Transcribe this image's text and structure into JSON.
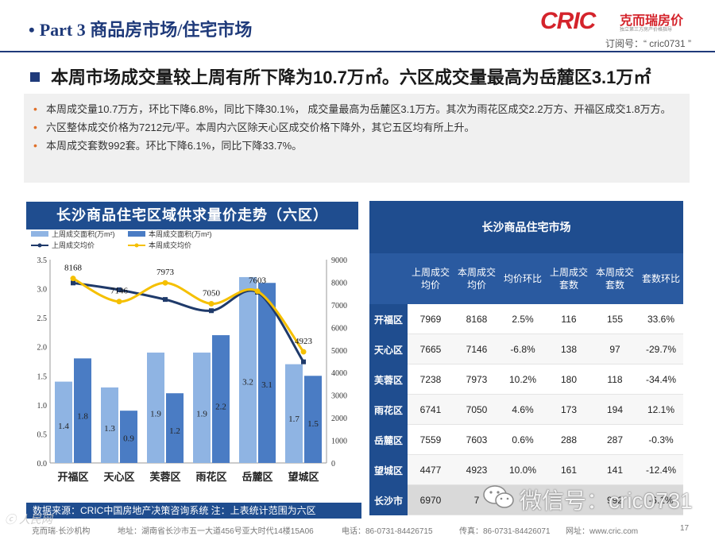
{
  "header": {
    "bullet": "•",
    "title": "Part 3 商品房市场/住宅市场",
    "logo_brand": "CRIC",
    "logo_cn": "克而瑞房价",
    "logo_sub": "独立第三方房产价格指导",
    "subscribe": "订阅号：“ cric0731 ”"
  },
  "headline": "本周市场成交量较上周有所下降为10.7万㎡。六区成交量最高为岳麓区3.1万㎡",
  "summary": [
    "本周成交量10.7万方，环比下降6.8%，同比下降30.1%， 成交量最高为岳麓区3.1万方。其次为雨花区成交2.2万方、开福区成交1.8万方。",
    "六区整体成交价格为7212元/平。本周内六区除天心区成交价格下降外，其它五区均有所上升。",
    "本周成交套数992套。环比下降6.1%，同比下降33.7%。"
  ],
  "chart": {
    "title": "长沙商品住宅区域供求量价走势（六区）",
    "colors": {
      "last_area": "#8fb4e3",
      "this_area": "#4a7cc4",
      "last_price": "#1f3a6a",
      "this_price": "#f5c000"
    }
  },
  "chart_data": {
    "type": "bar",
    "categories": [
      "开福区",
      "天心区",
      "芙蓉区",
      "雨花区",
      "岳麓区",
      "望城区"
    ],
    "series": [
      {
        "name": "上周成交面积(万m²)",
        "kind": "bar",
        "axis": "left",
        "values": [
          1.4,
          1.3,
          1.9,
          1.9,
          3.2,
          1.7
        ],
        "labels": [
          "1.4",
          "1.3",
          "1.9",
          "1.9",
          "3.2",
          "1.7"
        ]
      },
      {
        "name": "本周成交面积(万m²)",
        "kind": "bar",
        "axis": "left",
        "values": [
          1.8,
          0.9,
          1.2,
          2.2,
          3.1,
          1.5
        ],
        "labels": [
          "1.8",
          "0.9",
          "1.2",
          "2.2",
          "3.1",
          "1.5"
        ]
      },
      {
        "name": "上周成交均价",
        "kind": "line",
        "axis": "right",
        "values": [
          7969,
          7665,
          7238,
          6741,
          7559,
          4477
        ]
      },
      {
        "name": "本周成交均价",
        "kind": "line",
        "axis": "right",
        "values": [
          8168,
          7146,
          7973,
          7050,
          7603,
          4923
        ],
        "labels": [
          "8168",
          "7146",
          "7973",
          "7050",
          "7603",
          "4923"
        ]
      }
    ],
    "y_left": {
      "range": [
        0,
        3.5
      ],
      "ticks": [
        "0.0",
        "0.5",
        "1.0",
        "1.5",
        "2.0",
        "2.5",
        "3.0",
        "3.5"
      ]
    },
    "y_right": {
      "range": [
        0,
        9000
      ],
      "ticks": [
        "0",
        "1000",
        "2000",
        "3000",
        "4000",
        "5000",
        "6000",
        "7000",
        "8000",
        "9000"
      ]
    },
    "grid": false,
    "legend": "top-left"
  },
  "table": {
    "title": "长沙商品住宅市场",
    "headers": [
      "上周成交均价",
      "本周成交均价",
      "均价环比",
      "上周成交套数",
      "本周成交套数",
      "套数环比"
    ],
    "rows": [
      {
        "name": "开福区",
        "cells": [
          "7969",
          "8168",
          "2.5%",
          "116",
          "155",
          "33.6%"
        ]
      },
      {
        "name": "天心区",
        "cells": [
          "7665",
          "7146",
          "-6.8%",
          "138",
          "97",
          "-29.7%"
        ]
      },
      {
        "name": "芙蓉区",
        "cells": [
          "7238",
          "7973",
          "10.2%",
          "180",
          "118",
          "-34.4%"
        ]
      },
      {
        "name": "雨花区",
        "cells": [
          "6741",
          "7050",
          "4.6%",
          "173",
          "194",
          "12.1%"
        ]
      },
      {
        "name": "岳麓区",
        "cells": [
          "7559",
          "7603",
          "0.6%",
          "288",
          "287",
          "-0.3%"
        ]
      },
      {
        "name": "望城区",
        "cells": [
          "4477",
          "4923",
          "10.0%",
          "161",
          "141",
          "-12.4%"
        ]
      },
      {
        "name": "长沙市",
        "cells": [
          "6970",
          "7",
          "",
          "",
          "992",
          "-6.1%"
        ]
      }
    ]
  },
  "watermark_text": "微信号：cric0731",
  "source": "数据来源：CRIC中国房地产决策咨询系统   注：上表统计范围为六区",
  "footer": {
    "brand": "克而瑞·长沙机构",
    "address": "地址：湖南省长沙市五一大道456号亚大时代14楼15A06",
    "phone": "电话：86-0731-84426715",
    "fax": "传真：86-0731-84426071",
    "web": "网址：www.cric.com",
    "page": "17"
  },
  "corner_watermark": "ⓒ 人民网"
}
